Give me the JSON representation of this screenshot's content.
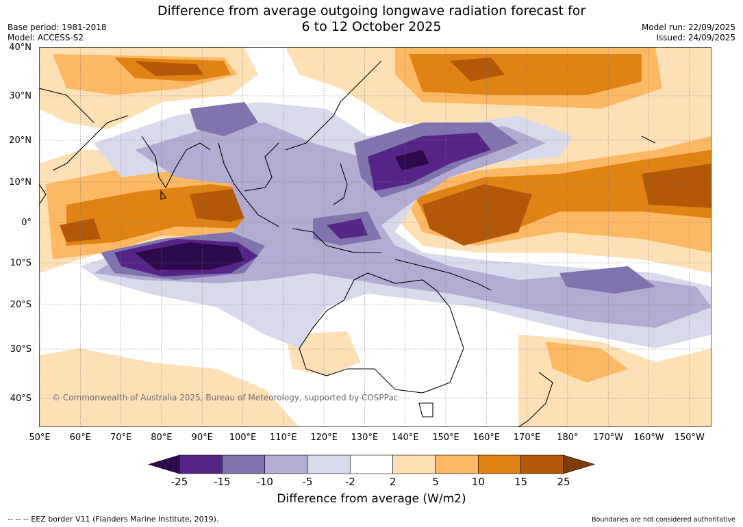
{
  "header": {
    "title_line1": "Difference from average outgoing longwave radiation forecast for",
    "title_line2": "6 to 12 October 2025",
    "base_period": "Base period: 1981-2018",
    "model": "Model: ACCESS-S2",
    "model_run": "Model run: 22/09/2025",
    "issued": "Issued: 24/09/2025"
  },
  "map": {
    "lat_labels": [
      "40°N",
      "30°N",
      "20°N",
      "10°N",
      "0°",
      "10°S",
      "20°S",
      "30°S",
      "40°S"
    ],
    "lon_labels": [
      "50°E",
      "60°E",
      "70°E",
      "80°E",
      "90°E",
      "100°E",
      "110°E",
      "120°E",
      "130°E",
      "140°E",
      "150°E",
      "160°E",
      "170°E",
      "180°",
      "170°W",
      "160°W",
      "150°W"
    ],
    "copyright": "© Commonwealth of Australia 2025, Bureau of Meteorology, supported by COSPPac"
  },
  "colorbar": {
    "ticks": [
      "-25",
      "-15",
      "-10",
      "-5",
      "-2",
      "2",
      "5",
      "10",
      "15",
      "25"
    ],
    "title": "Difference from average (W/m2)",
    "colors": {
      "below_-25": "#2d0a4b",
      "-25_-15": "#552487",
      "-15_-10": "#8173ad",
      "-10_-5": "#b2abd2",
      "-5_-2": "#d8daeb",
      "-2_2": "#ffffff",
      "2_5": "#fee0b6",
      "5_10": "#fdb863",
      "10_15": "#e08214",
      "15_25": "#b35806",
      "above_25": "#7f3b08"
    }
  },
  "footer": {
    "eez": "--  --  -- EEZ border V11 (Flanders Marine Institute, 2019).",
    "boundaries": "Boundaries are not considered authoritative"
  }
}
